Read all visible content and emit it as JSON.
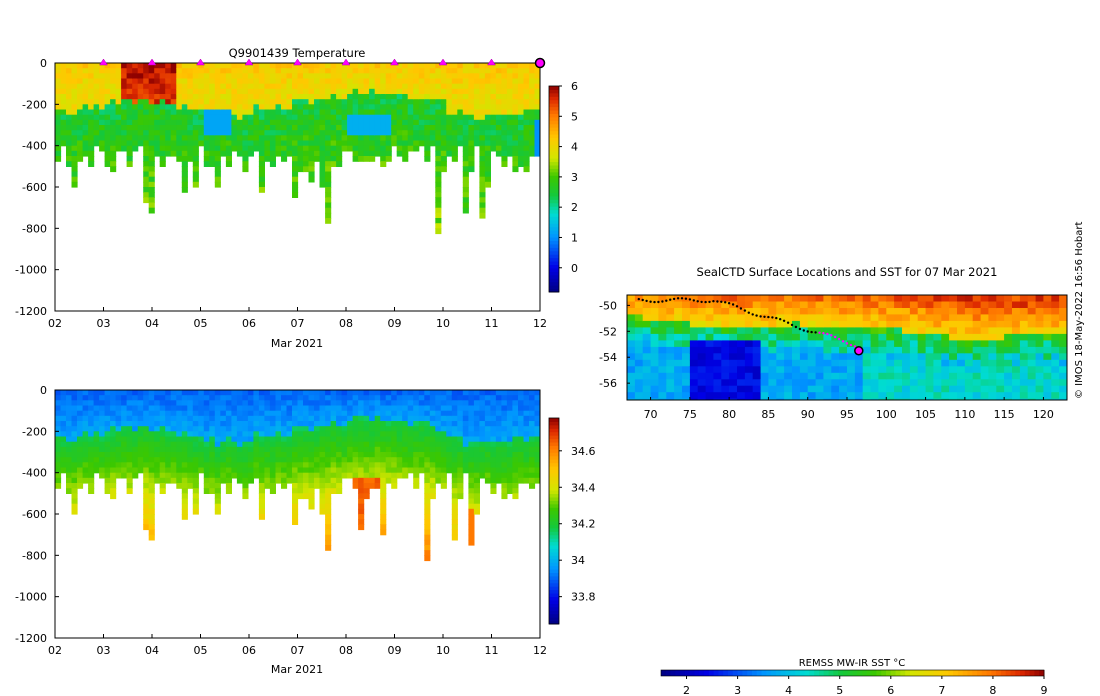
{
  "chart_data": [
    {
      "type": "heatmap",
      "id": "temperature-profile",
      "title": "Q9901439  Temperature",
      "xlabel": "Mar 2021",
      "ylabel": "",
      "x_ticks": [
        "02",
        "03",
        "04",
        "05",
        "06",
        "07",
        "08",
        "09",
        "10",
        "11",
        "12"
      ],
      "x_range": [
        2,
        12
      ],
      "y_ticks": [
        0,
        -200,
        -400,
        -600,
        -800,
        -1000,
        -1200
      ],
      "y_range": [
        -1200,
        0
      ],
      "colorbar": {
        "ticks": [
          0,
          1,
          2,
          3,
          4,
          5,
          6
        ],
        "range": [
          -0.8,
          6
        ]
      },
      "surfacing_markers_day": [
        3,
        4,
        5,
        6,
        7,
        8,
        9,
        10,
        11
      ],
      "current_marker_day": 12
    },
    {
      "type": "heatmap",
      "id": "salinity-profile",
      "title": "",
      "xlabel": "Mar 2021",
      "ylabel": "",
      "x_ticks": [
        "02",
        "03",
        "04",
        "05",
        "06",
        "07",
        "08",
        "09",
        "10",
        "11",
        "12"
      ],
      "x_range": [
        2,
        12
      ],
      "y_ticks": [
        0,
        -200,
        -400,
        -600,
        -800,
        -1000,
        -1200
      ],
      "y_range": [
        -1200,
        0
      ],
      "colorbar": {
        "ticks": [
          33.8,
          34,
          34.2,
          34.4,
          34.6
        ],
        "tick_labels": [
          "33.8",
          "34",
          "34.2",
          "34.4",
          "34.6"
        ],
        "range": [
          33.65,
          34.78
        ]
      }
    },
    {
      "type": "heatmap",
      "id": "sst-map",
      "title": "SealCTD Surface Locations and SST for 07 Mar 2021",
      "x_ticks": [
        70,
        75,
        80,
        85,
        90,
        95,
        100,
        105,
        110,
        115,
        120
      ],
      "x_range": [
        67,
        123
      ],
      "y_ticks": [
        -50,
        -52,
        -54,
        -56
      ],
      "y_range": [
        -57.3,
        -49.2
      ],
      "colorbar": {
        "label": "REMSS MW-IR SST °C",
        "ticks": [
          2,
          3,
          4,
          5,
          6,
          7,
          8,
          9
        ],
        "range": [
          1.5,
          9
        ]
      },
      "current_position": {
        "lon": 96.5,
        "lat": -53.5
      }
    }
  ],
  "credit": "© IMOS 18-May-2022 16:56 Hobart"
}
